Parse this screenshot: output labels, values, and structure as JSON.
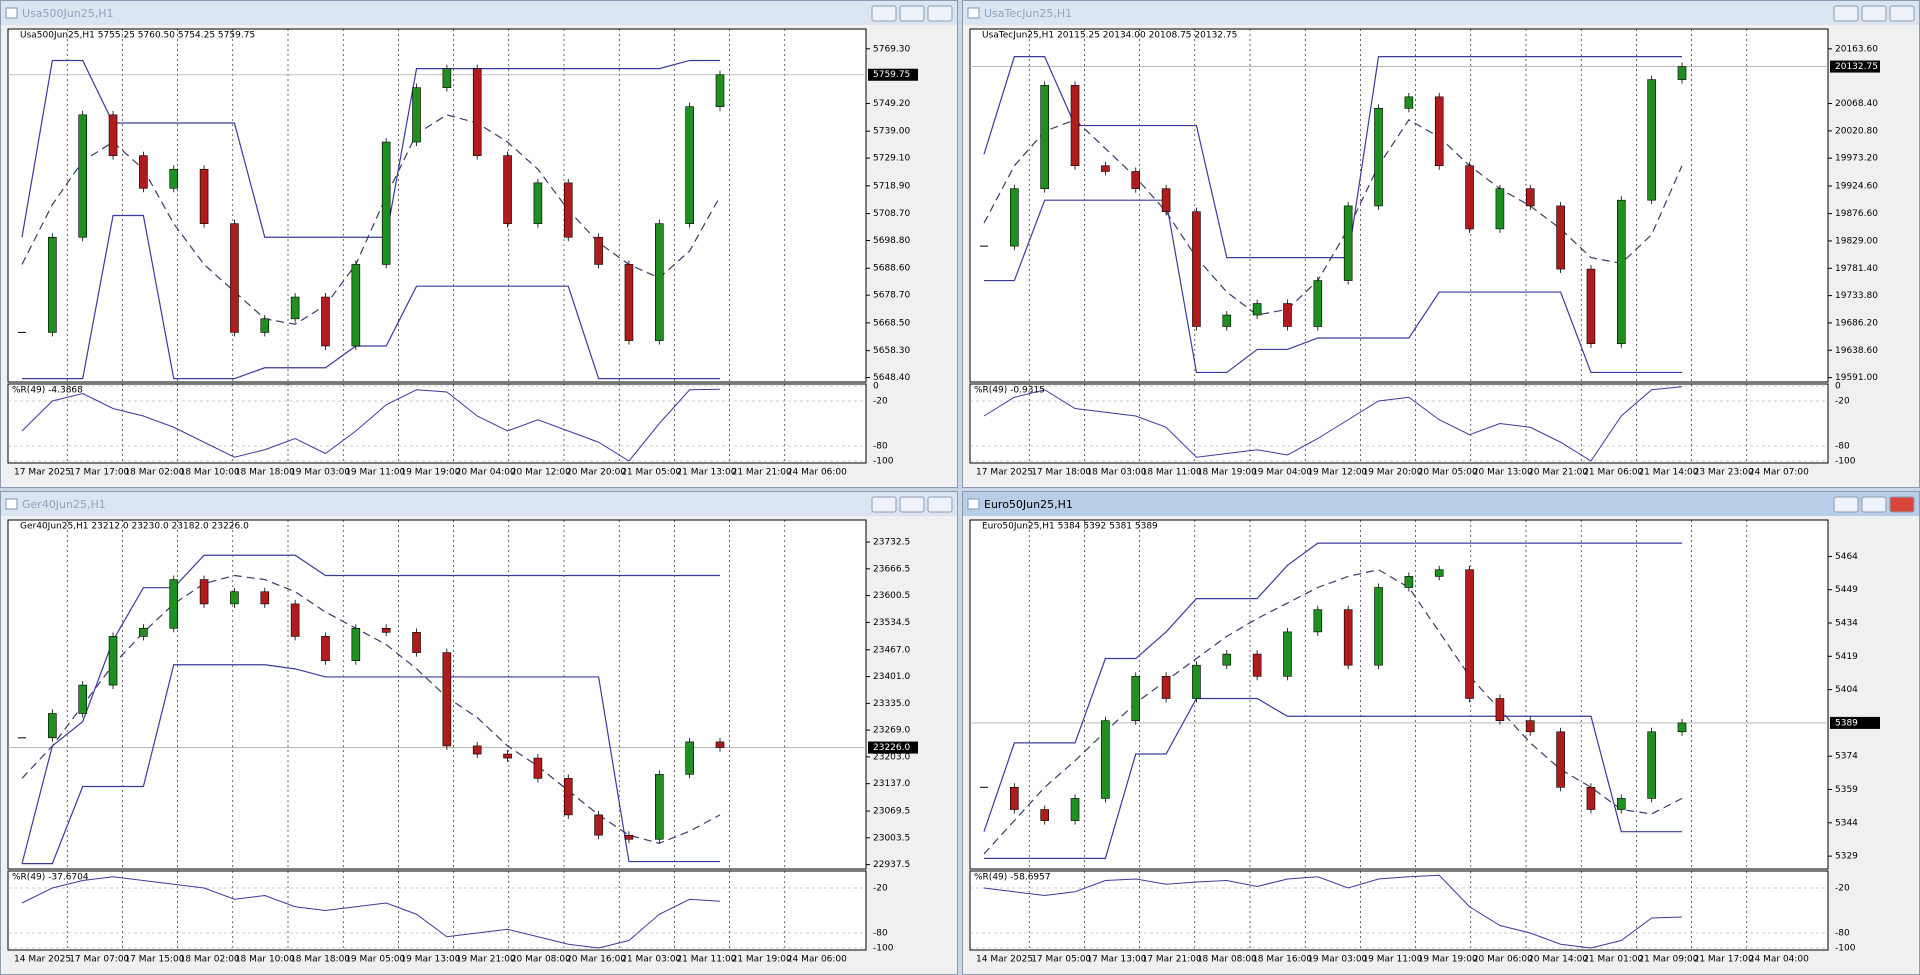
{
  "chart_data": [
    {
      "type": "candlestick",
      "title": "Usa500Jun25,H1",
      "active": false,
      "subtitle": "Usa500Jun25,H1  5755.25 5760.50 5754.25 5759.75",
      "ylim": [
        5647.5,
        5775.1
      ],
      "yticks": [
        {
          "value": 5769.3,
          "label": "5769.30"
        },
        {
          "value": 5749.2,
          "label": "5749.20"
        },
        {
          "value": 5739.0,
          "label": "5739.00"
        },
        {
          "value": 5729.1,
          "label": "5729.10"
        },
        {
          "value": 5718.9,
          "label": "5718.90"
        },
        {
          "value": 5708.7,
          "label": "5708.70"
        },
        {
          "value": 5698.8,
          "label": "5698.80"
        },
        {
          "value": 5688.6,
          "label": "5688.60"
        },
        {
          "value": 5678.7,
          "label": "5678.70"
        },
        {
          "value": 5668.5,
          "label": "5668.50"
        },
        {
          "value": 5658.3,
          "label": "5658.30"
        },
        {
          "value": 5648.4,
          "label": "5648.40"
        }
      ],
      "last_price": 5759.75,
      "xtick_labels": [
        "17 Mar 2025",
        "17 Mar 17:00",
        "18 Mar 02:00",
        "18 Mar 10:00",
        "18 Mar 18:00",
        "19 Mar 03:00",
        "19 Mar 11:00",
        "19 Mar 19:00",
        "20 Mar 04:00",
        "20 Mar 12:00",
        "20 Mar 20:00",
        "21 Mar 05:00",
        "21 Mar 13:00",
        "21 Mar 21:00",
        "24 Mar 06:00"
      ],
      "close": [
        5665,
        5700,
        5745,
        5730,
        5718,
        5725,
        5705,
        5665,
        5670,
        5678,
        5660,
        5690,
        5735,
        5755,
        5762,
        5730,
        5705,
        5720,
        5700,
        5690,
        5662,
        5705,
        5748,
        5759.75
      ],
      "upper": [
        5700,
        5765,
        5765,
        5742,
        5742,
        5742,
        5742,
        5742,
        5700,
        5700,
        5700,
        5700,
        5700,
        5762,
        5762,
        5762,
        5762,
        5762,
        5762,
        5762,
        5762,
        5762,
        5765,
        5765
      ],
      "lower": [
        5648,
        5648,
        5648,
        5708,
        5708,
        5648,
        5648,
        5648,
        5652,
        5652,
        5652,
        5660,
        5660,
        5682,
        5682,
        5682,
        5682,
        5682,
        5682,
        5648,
        5648,
        5648,
        5648,
        5648
      ],
      "ma": [
        5690,
        5712,
        5728,
        5735,
        5725,
        5705,
        5690,
        5680,
        5670,
        5668,
        5675,
        5690,
        5715,
        5738,
        5745,
        5742,
        5735,
        5725,
        5710,
        5698,
        5690,
        5685,
        5695,
        5715
      ],
      "indicator": {
        "label": "%R(49) -4.3868",
        "ylim": [
          -100,
          0
        ],
        "yticks": [
          0,
          -20,
          -80,
          -100
        ],
        "values": [
          -60,
          -20,
          -10,
          -30,
          -40,
          -55,
          -75,
          -95,
          -85,
          -70,
          -90,
          -60,
          -25,
          -5,
          -8,
          -40,
          -60,
          -45,
          -60,
          -75,
          -100,
          -50,
          -5,
          -4.3868
        ]
      },
      "up_color": "#1f8f1f",
      "down_color": "#b01c1c",
      "channel_color": "#3b3b9c"
    },
    {
      "type": "candlestick",
      "title": "UsaTecJun25,H1",
      "active": false,
      "subtitle": "UsaTecJun25,H1  20115.25 20134.00 20108.75 20132.75",
      "ylim": [
        19586.8,
        20191.2
      ],
      "yticks": [
        {
          "value": 20163.6,
          "label": "20163.60"
        },
        {
          "value": 20068.4,
          "label": "20068.40"
        },
        {
          "value": 20020.8,
          "label": "20020.80"
        },
        {
          "value": 19973.2,
          "label": "19973.20"
        },
        {
          "value": 19924.6,
          "label": "19924.60"
        },
        {
          "value": 19876.6,
          "label": "19876.60"
        },
        {
          "value": 19829.0,
          "label": "19829.00"
        },
        {
          "value": 19781.4,
          "label": "19781.40"
        },
        {
          "value": 19733.8,
          "label": "19733.80"
        },
        {
          "value": 19686.2,
          "label": "19686.20"
        },
        {
          "value": 19638.6,
          "label": "19638.60"
        },
        {
          "value": 19591.0,
          "label": "19591.00"
        }
      ],
      "last_price": 20132.75,
      "xtick_labels": [
        "17 Mar 2025",
        "17 Mar 18:00",
        "18 Mar 03:00",
        "18 Mar 11:00",
        "18 Mar 19:00",
        "19 Mar 04:00",
        "19 Mar 12:00",
        "19 Mar 20:00",
        "20 Mar 05:00",
        "20 Mar 13:00",
        "20 Mar 21:00",
        "21 Mar 06:00",
        "21 Mar 14:00",
        "23 Mar 23:00",
        "24 Mar 07:00"
      ],
      "close": [
        19820,
        19920,
        20100,
        19960,
        19950,
        19920,
        19880,
        19680,
        19700,
        19720,
        19680,
        19760,
        19890,
        20060,
        20080,
        19960,
        19850,
        19920,
        19890,
        19780,
        19650,
        19900,
        20110,
        20132.75
      ],
      "upper": [
        19980,
        20150,
        20150,
        20030,
        20030,
        20030,
        20030,
        20030,
        19800,
        19800,
        19800,
        19800,
        19800,
        20150,
        20150,
        20150,
        20150,
        20150,
        20150,
        20150,
        20150,
        20150,
        20150,
        20150
      ],
      "lower": [
        19760,
        19760,
        19900,
        19900,
        19900,
        19900,
        19900,
        19600,
        19600,
        19640,
        19640,
        19660,
        19660,
        19660,
        19660,
        19740,
        19740,
        19740,
        19740,
        19740,
        19600,
        19600,
        19600,
        19600
      ],
      "ma": [
        19860,
        19960,
        20020,
        20040,
        19990,
        19940,
        19880,
        19800,
        19740,
        19700,
        19710,
        19760,
        19850,
        19960,
        20040,
        20010,
        19960,
        19920,
        19890,
        19850,
        19800,
        19790,
        19840,
        19960
      ],
      "indicator": {
        "label": "%R(49) -0.9315",
        "ylim": [
          -100,
          0
        ],
        "yticks": [
          0,
          -20,
          -80,
          -100
        ],
        "values": [
          -40,
          -15,
          -5,
          -30,
          -35,
          -40,
          -55,
          -95,
          -90,
          -85,
          -92,
          -70,
          -45,
          -20,
          -15,
          -45,
          -65,
          -50,
          -55,
          -75,
          -100,
          -40,
          -5,
          -0.9315
        ]
      },
      "up_color": "#1f8f1f",
      "down_color": "#b01c1c",
      "channel_color": "#3b3b9c"
    },
    {
      "type": "candlestick",
      "title": "Ger40Jun25,H1",
      "active": false,
      "subtitle": "Ger40Jun25,H1  23212.0 23230.0 23182.0 23226.0",
      "ylim": [
        22931.6,
        23777
      ],
      "yticks": [
        {
          "value": 23732.5,
          "label": "23732.5"
        },
        {
          "value": 23666.5,
          "label": "23666.5"
        },
        {
          "value": 23600.5,
          "label": "23600.5"
        },
        {
          "value": 23534.5,
          "label": "23534.5"
        },
        {
          "value": 23467.0,
          "label": "23467.0"
        },
        {
          "value": 23401.0,
          "label": "23401.0"
        },
        {
          "value": 23335.0,
          "label": "23335.0"
        },
        {
          "value": 23269.0,
          "label": "23269.0"
        },
        {
          "value": 23203.0,
          "label": "23203.0"
        },
        {
          "value": 23137.0,
          "label": "23137.0"
        },
        {
          "value": 23069.5,
          "label": "23069.5"
        },
        {
          "value": 23003.5,
          "label": "23003.5"
        },
        {
          "value": 22937.5,
          "label": "22937.5"
        }
      ],
      "last_price": {
        "value": 23226.0,
        "label": "23226.0"
      },
      "xtick_labels": [
        "14 Mar 2025",
        "17 Mar 07:00",
        "17 Mar 15:00",
        "18 Mar 02:00",
        "18 Mar 10:00",
        "18 Mar 18:00",
        "19 Mar 05:00",
        "19 Mar 13:00",
        "19 Mar 21:00",
        "20 Mar 08:00",
        "20 Mar 16:00",
        "21 Mar 03:00",
        "21 Mar 11:00",
        "21 Mar 19:00",
        "24 Mar 06:00"
      ],
      "close": [
        23250,
        23310,
        23380,
        23500,
        23520,
        23640,
        23580,
        23610,
        23580,
        23500,
        23440,
        23520,
        23510,
        23460,
        23230,
        23210,
        23200,
        23150,
        23060,
        23010,
        23000,
        23160,
        23240,
        23226
      ],
      "upper": [
        22940,
        23230,
        23290,
        23490,
        23620,
        23620,
        23700,
        23700,
        23700,
        23700,
        23650,
        23650,
        23650,
        23650,
        23650,
        23650,
        23650,
        23650,
        23650,
        23650,
        23650,
        23650,
        23650,
        23650
      ],
      "lower": [
        22940,
        22940,
        23130,
        23130,
        23130,
        23430,
        23430,
        23430,
        23430,
        23420,
        23400,
        23400,
        23400,
        23400,
        23400,
        23400,
        23400,
        23400,
        23400,
        23400,
        22945,
        22945,
        22945,
        22945
      ],
      "ma": [
        23150,
        23230,
        23330,
        23430,
        23510,
        23580,
        23630,
        23650,
        23640,
        23610,
        23560,
        23520,
        23480,
        23420,
        23350,
        23300,
        23230,
        23180,
        23120,
        23060,
        23010,
        22990,
        23020,
        23060
      ],
      "indicator": {
        "label": "%R(49) -37.6704",
        "ylim": [
          -100,
          0
        ],
        "yticks": [
          -20,
          -80,
          -100
        ],
        "values": [
          -40,
          -20,
          -10,
          -5,
          -10,
          -15,
          -20,
          -35,
          -30,
          -45,
          -50,
          -45,
          -40,
          -55,
          -85,
          -80,
          -75,
          -85,
          -95,
          -100,
          -90,
          -55,
          -35,
          -37.6704
        ]
      },
      "up_color": "#1f8f1f",
      "down_color": "#b01c1c",
      "channel_color": "#3b3b9c"
    },
    {
      "type": "candlestick",
      "title": "Euro50Jun25,H1",
      "active": true,
      "subtitle": "Euro50Jun25,H1  5384 5392 5381 5389",
      "ylim": [
        5324.1,
        5478.6
      ],
      "yticks": [
        5464,
        5449,
        5434,
        5419,
        5404,
        5374,
        5359,
        5344,
        5329
      ],
      "last_price": 5389,
      "xtick_labels": [
        "14 Mar 2025",
        "17 Mar 05:00",
        "17 Mar 13:00",
        "17 Mar 21:00",
        "18 Mar 08:00",
        "18 Mar 16:00",
        "19 Mar 03:00",
        "19 Mar 11:00",
        "19 Mar 19:00",
        "20 Mar 06:00",
        "20 Mar 14:00",
        "21 Mar 01:00",
        "21 Mar 09:00",
        "21 Mar 17:00",
        "24 Mar 04:00"
      ],
      "close": [
        5360,
        5350,
        5345,
        5355,
        5390,
        5410,
        5400,
        5415,
        5420,
        5410,
        5430,
        5440,
        5415,
        5450,
        5455,
        5458,
        5400,
        5390,
        5385,
        5360,
        5350,
        5355,
        5385,
        5389
      ],
      "upper": [
        5340,
        5380,
        5380,
        5380,
        5418,
        5418,
        5430,
        5445,
        5445,
        5445,
        5460,
        5470,
        5470,
        5470,
        5470,
        5470,
        5470,
        5470,
        5470,
        5470,
        5470,
        5470,
        5470,
        5470
      ],
      "lower": [
        5328,
        5328,
        5328,
        5328,
        5328,
        5375,
        5375,
        5400,
        5400,
        5400,
        5392,
        5392,
        5392,
        5392,
        5392,
        5392,
        5392,
        5392,
        5392,
        5392,
        5392,
        5340,
        5340,
        5340
      ],
      "ma": [
        5330,
        5345,
        5360,
        5372,
        5385,
        5398,
        5408,
        5418,
        5428,
        5436,
        5443,
        5450,
        5455,
        5458,
        5450,
        5430,
        5410,
        5395,
        5380,
        5368,
        5360,
        5350,
        5348,
        5355
      ],
      "indicator": {
        "label": "%R(49) -58.6957",
        "ylim": [
          -100,
          0
        ],
        "yticks": [
          -20,
          -80,
          -100
        ],
        "values": [
          -20,
          -25,
          -30,
          -25,
          -10,
          -8,
          -15,
          -12,
          -10,
          -18,
          -8,
          -5,
          -20,
          -8,
          -5,
          -3,
          -45,
          -70,
          -80,
          -95,
          -100,
          -90,
          -60,
          -58.6957
        ]
      },
      "up_color": "#1f8f1f",
      "down_color": "#b01c1c",
      "channel_color": "#3b3b9c"
    }
  ]
}
